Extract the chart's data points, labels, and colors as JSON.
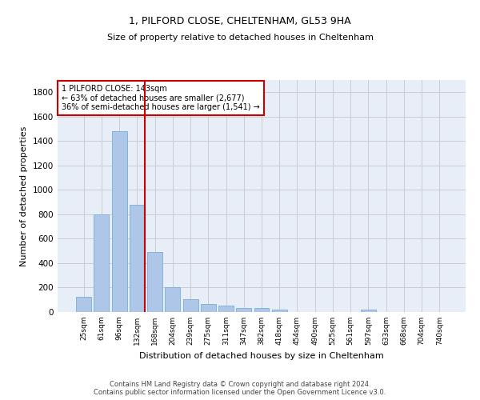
{
  "title1": "1, PILFORD CLOSE, CHELTENHAM, GL53 9HA",
  "title2": "Size of property relative to detached houses in Cheltenham",
  "xlabel": "Distribution of detached houses by size in Cheltenham",
  "ylabel": "Number of detached properties",
  "footer1": "Contains HM Land Registry data © Crown copyright and database right 2024.",
  "footer2": "Contains public sector information licensed under the Open Government Licence v3.0.",
  "bar_color": "#aec6e8",
  "bar_edge_color": "#7aafd4",
  "categories": [
    "25sqm",
    "61sqm",
    "96sqm",
    "132sqm",
    "168sqm",
    "204sqm",
    "239sqm",
    "275sqm",
    "311sqm",
    "347sqm",
    "382sqm",
    "418sqm",
    "454sqm",
    "490sqm",
    "525sqm",
    "561sqm",
    "597sqm",
    "633sqm",
    "668sqm",
    "704sqm",
    "740sqm"
  ],
  "values": [
    125,
    800,
    1480,
    880,
    490,
    205,
    105,
    65,
    50,
    35,
    30,
    20,
    0,
    0,
    0,
    0,
    20,
    0,
    0,
    0,
    0
  ],
  "vline_x": 3.43,
  "vline_color": "#cc0000",
  "annotation_text": "1 PILFORD CLOSE: 143sqm\n← 63% of detached houses are smaller (2,677)\n36% of semi-detached houses are larger (1,541) →",
  "annotation_box_color": "white",
  "annotation_box_edge": "#cc0000",
  "ylim": [
    0,
    1900
  ],
  "yticks": [
    0,
    200,
    400,
    600,
    800,
    1000,
    1200,
    1400,
    1600,
    1800
  ],
  "grid_color": "#cccccc",
  "background_color": "#e8eef8"
}
